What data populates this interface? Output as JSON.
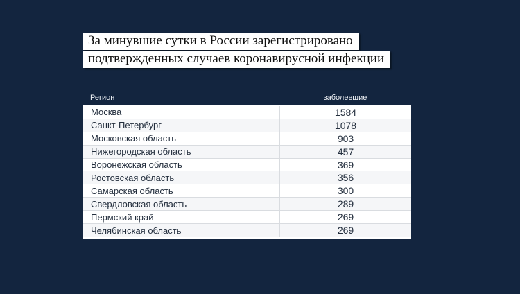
{
  "page": {
    "background_color": "#13253f"
  },
  "colors": {
    "background": "#13253f",
    "headline_background": "#ffffff",
    "headline_text": "#101010",
    "table_row_text": "#232e3d",
    "table_stripe": "#f5f6f8",
    "table_rule": "#d9dce0",
    "column_header_text": "#eef1f5"
  },
  "headline": {
    "line1": "За минувшие сутки в России зарегистрировано",
    "line2": "подтвержденных случаев коронавирусной инфекции"
  },
  "table": {
    "columns": {
      "region": "Регион",
      "cases": "заболевшие"
    },
    "rows": [
      {
        "region": "Москва",
        "cases": "1584"
      },
      {
        "region": "Санкт-Петербург",
        "cases": "1078"
      },
      {
        "region": "Московская область",
        "cases": "903"
      },
      {
        "region": "Нижегородская область",
        "cases": "457"
      },
      {
        "region": "Воронежская область",
        "cases": "369"
      },
      {
        "region": "Ростовская область",
        "cases": "356"
      },
      {
        "region": "Самарская область",
        "cases": "300"
      },
      {
        "region": "Свердловская область",
        "cases": "289"
      },
      {
        "region": "Пермский край",
        "cases": "269"
      },
      {
        "region": "Челябинская область",
        "cases": "269"
      }
    ]
  },
  "chart_data": {
    "type": "table",
    "title": "За минувшие сутки в России зарегистрировано подтвержденных случаев коронавирусной инфекции",
    "columns": [
      "Регион",
      "заболевшие"
    ],
    "categories": [
      "Москва",
      "Санкт-Петербург",
      "Московская область",
      "Нижегородская область",
      "Воронежская область",
      "Ростовская область",
      "Самарская область",
      "Свердловская область",
      "Пермский край",
      "Челябинская область"
    ],
    "values": [
      1584,
      1078,
      903,
      457,
      369,
      356,
      300,
      289,
      269,
      269
    ],
    "legend_position": "none",
    "grid": "row-rules"
  }
}
